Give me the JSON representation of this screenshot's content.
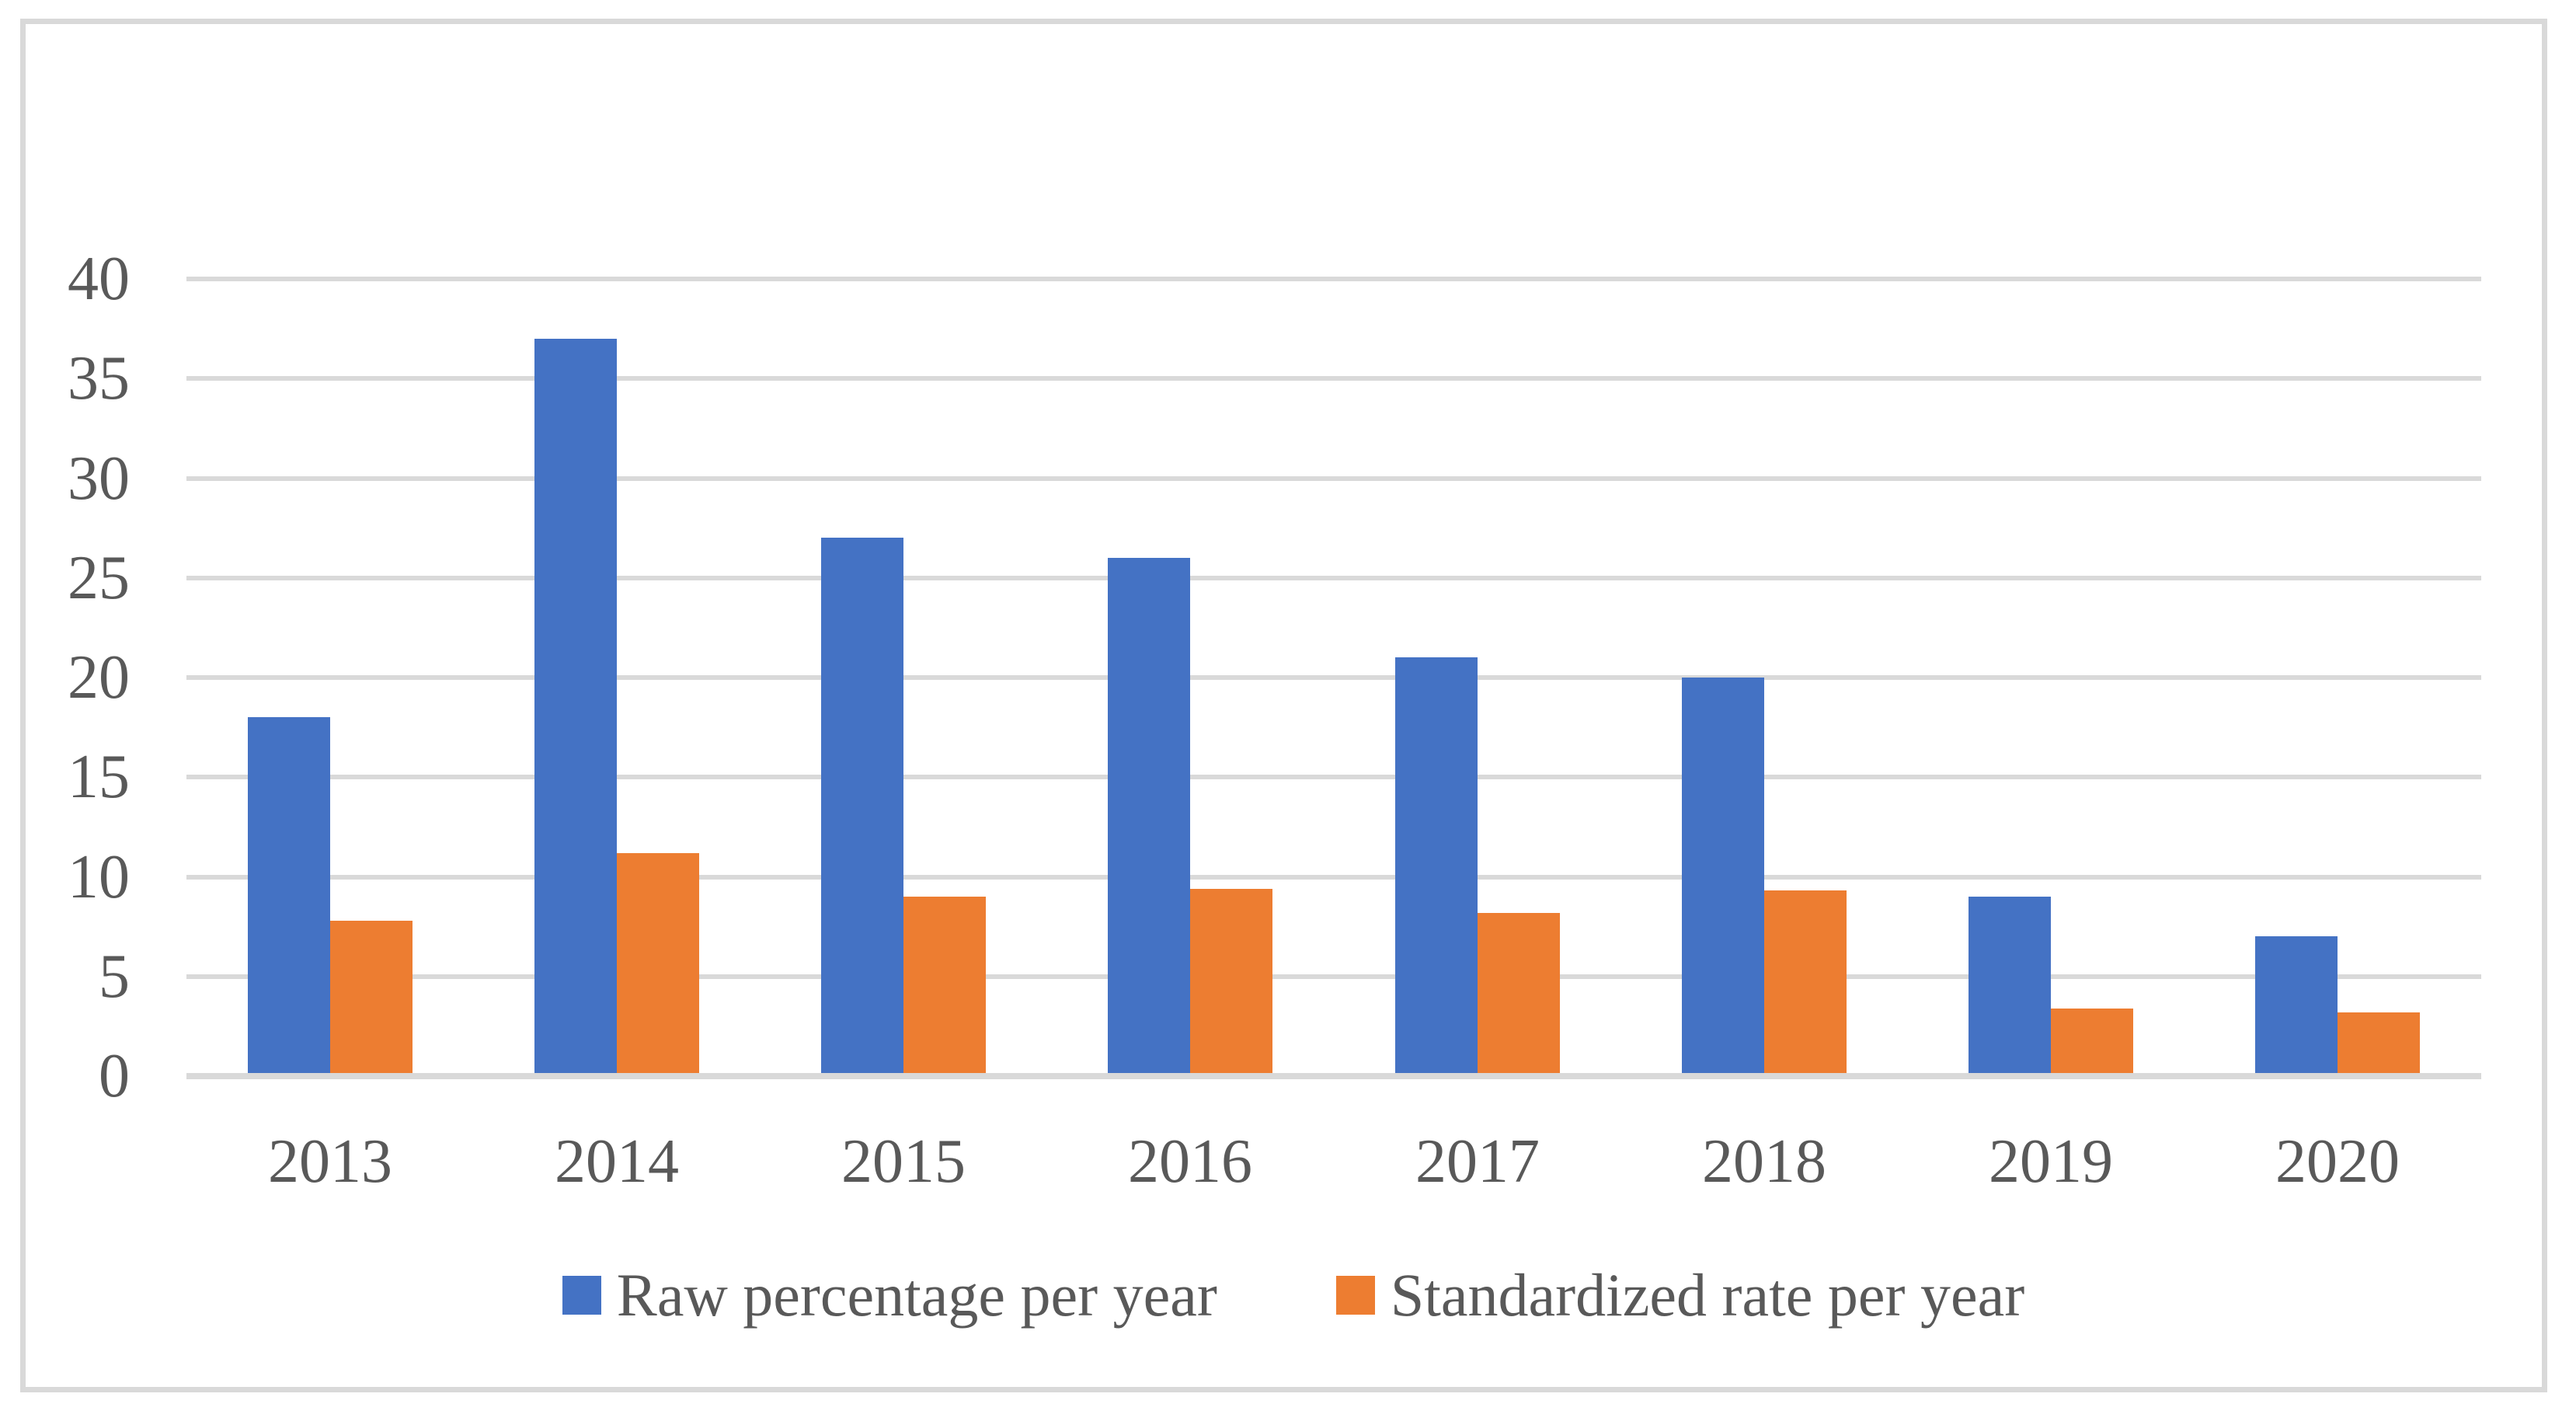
{
  "chart_data": {
    "type": "bar",
    "title": "",
    "xlabel": "",
    "ylabel": "",
    "categories": [
      "2013",
      "2014",
      "2015",
      "2016",
      "2017",
      "2018",
      "2019",
      "2020"
    ],
    "series": [
      {
        "name": "Raw percentage per year",
        "key": "raw",
        "color": "#4472C4",
        "values": [
          18,
          37,
          27,
          26,
          21,
          20,
          9,
          7
        ]
      },
      {
        "name": "Standardized rate per year",
        "key": "standardized",
        "color": "#ED7D31",
        "values": [
          7.8,
          11.2,
          9.0,
          9.4,
          8.2,
          9.3,
          3.4,
          3.2
        ]
      }
    ],
    "ylim": [
      0,
      40
    ],
    "ytick_step": 5,
    "ytick_labels": [
      "0",
      "5",
      "10",
      "15",
      "20",
      "25",
      "30",
      "35",
      "40"
    ],
    "grid": true,
    "legend_position": "bottom"
  },
  "colors": {
    "background": "#FFFFFF",
    "border": "#D9D9D9",
    "gridline": "#D9D9D9",
    "axis_line": "#D9D9D9",
    "text": "#595959"
  }
}
